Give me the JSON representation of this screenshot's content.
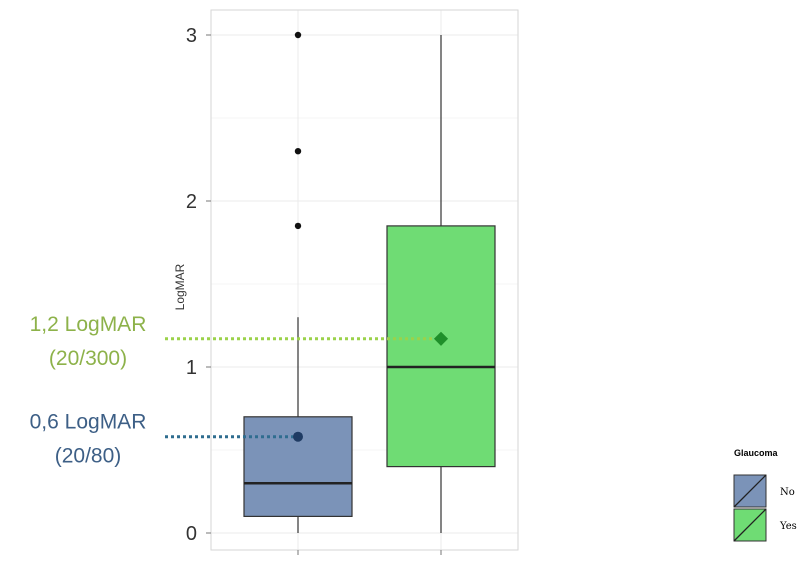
{
  "chart_data": {
    "type": "box",
    "ylabel": "LogMAR",
    "ylim": [
      -0.15,
      3.1
    ],
    "yticks": [
      0,
      1,
      2,
      3
    ],
    "grid": true,
    "legend": {
      "title": "Glaucoma",
      "placement": "right",
      "entries": [
        {
          "label": "No",
          "color": "#7b93b8"
        },
        {
          "label": "Yes",
          "color": "#6fdc74"
        }
      ]
    },
    "series": [
      {
        "name": "No",
        "color": "#7b93b8",
        "q1": 0.1,
        "median": 0.3,
        "q3": 0.7,
        "whisker_low": 0.0,
        "whisker_high": 1.3,
        "outliers": [
          1.85,
          2.3,
          3.0
        ],
        "mean": 0.58
      },
      {
        "name": "Yes",
        "color": "#6fdc74",
        "q1": 0.4,
        "median": 1.0,
        "q3": 1.85,
        "whisker_low": 0.0,
        "whisker_high": 3.0,
        "outliers": [],
        "mean": 1.17
      }
    ],
    "annotations": [
      {
        "line1": "1,2 LogMAR",
        "line2": "(20/300)",
        "value": 1.17,
        "color": "#8db24a",
        "line_color": "#9bd24a",
        "series": 1
      },
      {
        "line1": "0,6 LogMAR",
        "line2": "(20/80)",
        "value": 0.58,
        "color": "#3d5f86",
        "line_color": "#2f6d8f",
        "series": 0
      }
    ]
  }
}
